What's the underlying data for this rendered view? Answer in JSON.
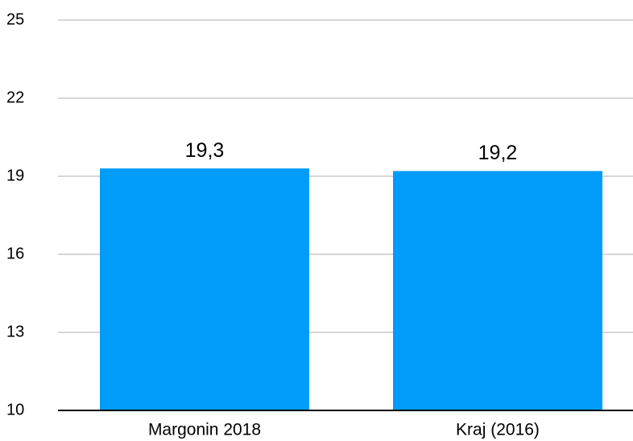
{
  "chart_data": {
    "type": "bar",
    "categories": [
      "Margonin 2018",
      "Kraj (2016)"
    ],
    "values": [
      19.3,
      19.2
    ],
    "value_labels": [
      "19,3",
      "19,2"
    ],
    "color": "#009cf9",
    "ylim": [
      10,
      25
    ],
    "yticks": [
      10,
      13,
      16,
      19,
      22,
      25
    ],
    "grid": true
  }
}
